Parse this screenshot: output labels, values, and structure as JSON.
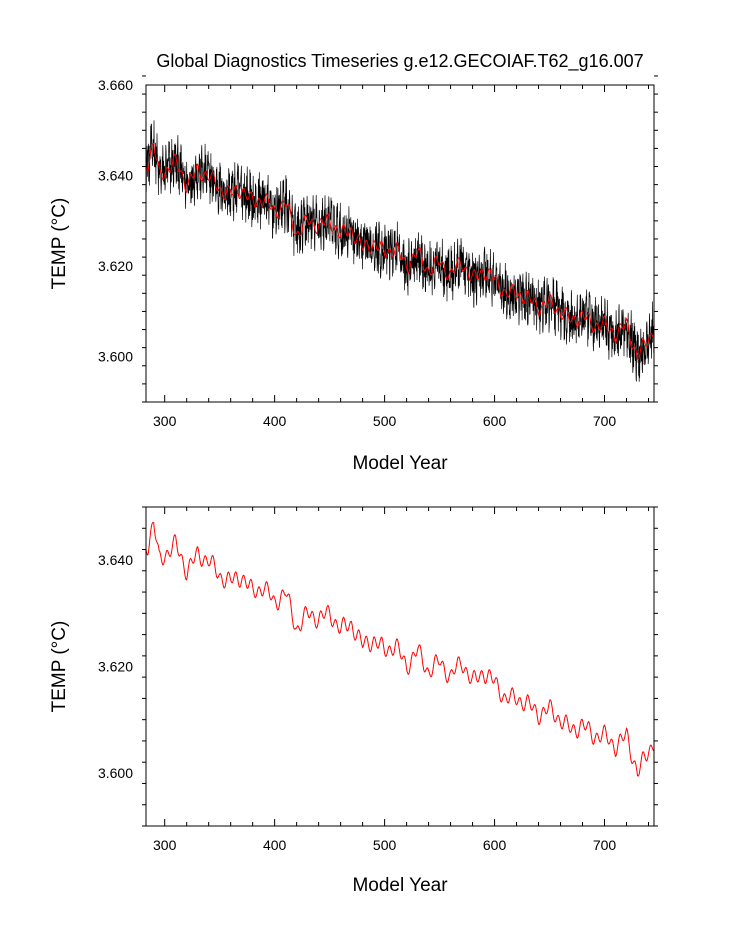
{
  "chart_data": [
    {
      "type": "line",
      "title": "Global Diagnostics Timeseries g.e12.GECOIAF.T62_g16.007",
      "xlabel": "Model Year",
      "ylabel": "TEMP (°C)",
      "xlim": [
        283,
        745
      ],
      "ylim": [
        3.59,
        3.66
      ],
      "xticks": [
        300,
        400,
        500,
        600,
        700
      ],
      "xtick_labels": [
        "300",
        "400",
        "500",
        "600",
        "700"
      ],
      "yticks": [
        3.6,
        3.62,
        3.64,
        3.66
      ],
      "ytick_labels": [
        "3.600",
        "3.620",
        "3.640",
        "3.660"
      ],
      "grid": false,
      "series": [
        {
          "color": "#000000",
          "style": "monthly values (high-frequency band)",
          "x": [
            285,
            290,
            295,
            300,
            310,
            320,
            330,
            340,
            350,
            360,
            370,
            380,
            390,
            400,
            410,
            420,
            430,
            440,
            450,
            460,
            470,
            480,
            490,
            500,
            510,
            520,
            530,
            540,
            550,
            560,
            570,
            580,
            590,
            600,
            610,
            620,
            630,
            640,
            650,
            660,
            670,
            680,
            690,
            700,
            710,
            720,
            730,
            740,
            745
          ],
          "y": [
            3.643,
            3.647,
            3.64,
            3.641,
            3.643,
            3.638,
            3.641,
            3.64,
            3.637,
            3.636,
            3.637,
            3.634,
            3.635,
            3.632,
            3.634,
            3.627,
            3.63,
            3.629,
            3.63,
            3.627,
            3.628,
            3.624,
            3.625,
            3.623,
            3.624,
            3.62,
            3.623,
            3.619,
            3.621,
            3.618,
            3.621,
            3.617,
            3.619,
            3.617,
            3.614,
            3.614,
            3.613,
            3.611,
            3.612,
            3.61,
            3.608,
            3.609,
            3.607,
            3.607,
            3.605,
            3.607,
            3.6,
            3.604,
            3.606
          ]
        },
        {
          "color": "#ff0000",
          "style": "annual mean",
          "x": [
            285,
            290,
            295,
            300,
            310,
            320,
            330,
            340,
            350,
            360,
            370,
            380,
            390,
            400,
            410,
            420,
            430,
            440,
            450,
            460,
            470,
            480,
            490,
            500,
            510,
            520,
            530,
            540,
            550,
            560,
            570,
            580,
            590,
            600,
            610,
            620,
            630,
            640,
            650,
            660,
            670,
            680,
            690,
            700,
            710,
            720,
            730,
            740,
            745
          ],
          "y": [
            3.643,
            3.647,
            3.64,
            3.641,
            3.643,
            3.638,
            3.641,
            3.64,
            3.637,
            3.636,
            3.637,
            3.634,
            3.635,
            3.632,
            3.634,
            3.627,
            3.63,
            3.629,
            3.63,
            3.627,
            3.628,
            3.624,
            3.625,
            3.623,
            3.624,
            3.62,
            3.623,
            3.619,
            3.621,
            3.618,
            3.621,
            3.617,
            3.619,
            3.617,
            3.614,
            3.614,
            3.613,
            3.611,
            3.612,
            3.61,
            3.608,
            3.609,
            3.607,
            3.607,
            3.605,
            3.607,
            3.6,
            3.604,
            3.606
          ]
        }
      ]
    },
    {
      "type": "line",
      "title": "",
      "xlabel": "Model Year",
      "ylabel": "TEMP (°C)",
      "xlim": [
        283,
        745
      ],
      "ylim": [
        3.59,
        3.65
      ],
      "xticks": [
        300,
        400,
        500,
        600,
        700
      ],
      "xtick_labels": [
        "300",
        "400",
        "500",
        "600",
        "700"
      ],
      "yticks": [
        3.6,
        3.62,
        3.64
      ],
      "ytick_labels": [
        "3.600",
        "3.620",
        "3.640"
      ],
      "grid": false,
      "series": [
        {
          "color": "#ff0000",
          "style": "annual mean",
          "x": [
            285,
            290,
            295,
            300,
            310,
            320,
            330,
            340,
            350,
            360,
            370,
            380,
            390,
            400,
            410,
            420,
            430,
            440,
            450,
            460,
            470,
            480,
            490,
            500,
            510,
            520,
            530,
            540,
            550,
            560,
            570,
            580,
            590,
            600,
            610,
            620,
            630,
            640,
            650,
            660,
            670,
            680,
            690,
            700,
            710,
            720,
            730,
            740,
            745
          ],
          "y": [
            3.643,
            3.647,
            3.64,
            3.641,
            3.643,
            3.638,
            3.641,
            3.64,
            3.637,
            3.636,
            3.637,
            3.634,
            3.635,
            3.632,
            3.634,
            3.627,
            3.63,
            3.629,
            3.63,
            3.627,
            3.628,
            3.624,
            3.625,
            3.623,
            3.624,
            3.62,
            3.623,
            3.619,
            3.621,
            3.618,
            3.621,
            3.617,
            3.619,
            3.617,
            3.614,
            3.614,
            3.613,
            3.611,
            3.612,
            3.61,
            3.608,
            3.609,
            3.607,
            3.607,
            3.605,
            3.607,
            3.6,
            3.604,
            3.606
          ]
        }
      ]
    }
  ]
}
